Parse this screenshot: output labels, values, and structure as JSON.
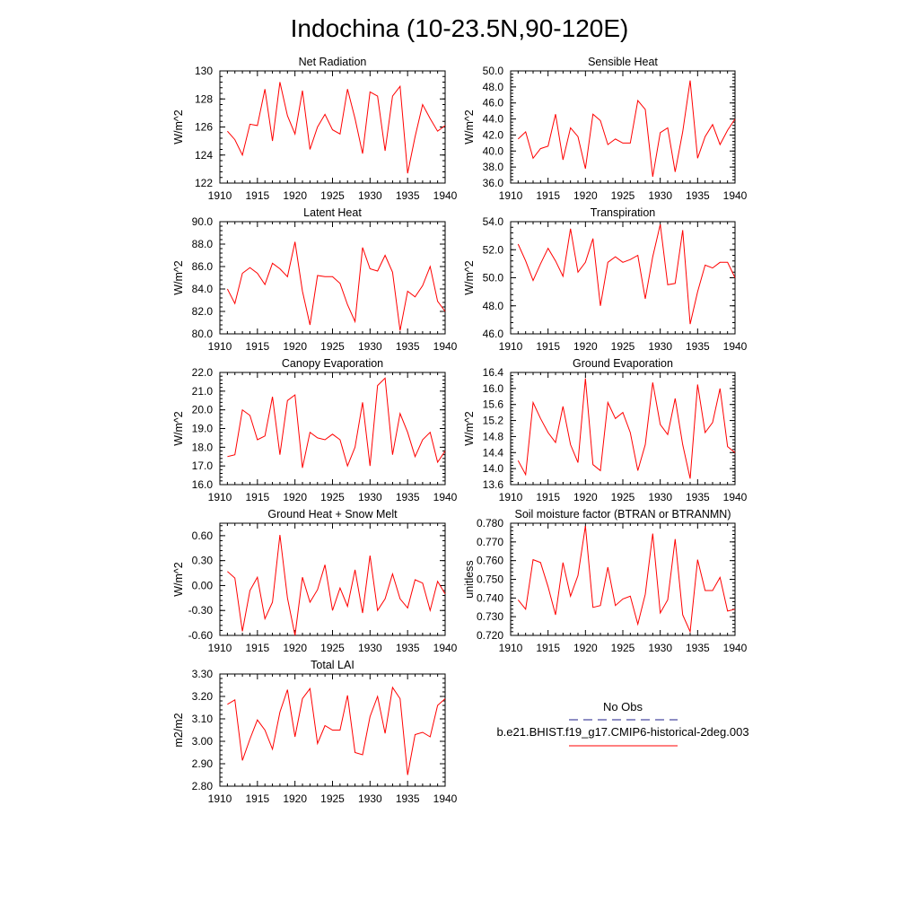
{
  "title": "Indochina (10-23.5N,90-120E)",
  "legend": {
    "obs_label": "No Obs",
    "obs_color": "#4a4aa0",
    "model_label": "b.e21.BHIST.f19_g17.CMIP6-historical-2deg.003",
    "model_color": "#ff0000"
  },
  "chart_data": [
    {
      "type": "line",
      "title": "Net Radiation",
      "ylabel": "W/m^2",
      "xlim": [
        1910,
        1940
      ],
      "ylim": [
        122,
        130
      ],
      "xticks": [
        "1910",
        "1915",
        "1920",
        "1925",
        "1930",
        "1935",
        "1940"
      ],
      "yticks": [
        "122",
        "124",
        "126",
        "128",
        "130"
      ],
      "x": [
        1911,
        1912,
        1913,
        1914,
        1915,
        1916,
        1917,
        1918,
        1919,
        1920,
        1921,
        1922,
        1923,
        1924,
        1925,
        1926,
        1927,
        1928,
        1929,
        1930,
        1931,
        1932,
        1933,
        1934,
        1935,
        1936,
        1937,
        1938,
        1939,
        1940
      ],
      "series": [
        {
          "values": [
            125.7,
            125.1,
            124.0,
            126.2,
            126.1,
            128.7,
            125.0,
            129.2,
            126.8,
            125.5,
            128.6,
            124.4,
            126.0,
            126.9,
            125.8,
            125.5,
            128.7,
            126.6,
            124.1,
            128.5,
            128.2,
            124.3,
            128.2,
            128.9,
            122.7,
            125.3,
            127.6,
            126.6,
            125.7,
            126.1
          ],
          "color": "#ff0000"
        }
      ]
    },
    {
      "type": "line",
      "title": "Sensible Heat",
      "ylabel": "W/m^2",
      "xlim": [
        1910,
        1940
      ],
      "ylim": [
        36.0,
        50.0
      ],
      "xticks": [
        "1910",
        "1915",
        "1920",
        "1925",
        "1930",
        "1935",
        "1940"
      ],
      "yticks": [
        "36.0",
        "38.0",
        "40.0",
        "42.0",
        "44.0",
        "46.0",
        "48.0",
        "50.0"
      ],
      "x": [
        1911,
        1912,
        1913,
        1914,
        1915,
        1916,
        1917,
        1918,
        1919,
        1920,
        1921,
        1922,
        1923,
        1924,
        1925,
        1926,
        1927,
        1928,
        1929,
        1930,
        1931,
        1932,
        1933,
        1934,
        1935,
        1936,
        1937,
        1938,
        1939,
        1940
      ],
      "series": [
        {
          "values": [
            41.5,
            42.4,
            39.1,
            40.3,
            40.6,
            44.6,
            38.9,
            42.9,
            41.8,
            37.8,
            44.6,
            43.8,
            40.8,
            41.5,
            41.0,
            41.0,
            46.3,
            45.2,
            36.8,
            42.3,
            42.9,
            37.4,
            42.4,
            48.8,
            39.1,
            41.8,
            43.3,
            40.8,
            42.6,
            44.0
          ],
          "color": "#ff0000"
        }
      ]
    },
    {
      "type": "line",
      "title": "Latent Heat",
      "ylabel": "W/m^2",
      "xlim": [
        1910,
        1940
      ],
      "ylim": [
        80.0,
        90.0
      ],
      "xticks": [
        "1910",
        "1915",
        "1920",
        "1925",
        "1930",
        "1935",
        "1940"
      ],
      "yticks": [
        "80.0",
        "82.0",
        "84.0",
        "86.0",
        "88.0",
        "90.0"
      ],
      "x": [
        1911,
        1912,
        1913,
        1914,
        1915,
        1916,
        1917,
        1918,
        1919,
        1920,
        1921,
        1922,
        1923,
        1924,
        1925,
        1926,
        1927,
        1928,
        1929,
        1930,
        1931,
        1932,
        1933,
        1934,
        1935,
        1936,
        1937,
        1938,
        1939,
        1940
      ],
      "series": [
        {
          "values": [
            84.0,
            82.7,
            85.4,
            85.9,
            85.4,
            84.4,
            86.3,
            85.8,
            85.1,
            88.2,
            83.8,
            80.8,
            85.2,
            85.1,
            85.1,
            84.5,
            82.6,
            81.1,
            87.7,
            85.8,
            85.6,
            87.0,
            85.5,
            80.3,
            83.8,
            83.3,
            84.3,
            86.0,
            82.9,
            82.0
          ],
          "color": "#ff0000"
        }
      ]
    },
    {
      "type": "line",
      "title": "Transpiration",
      "ylabel": "W/m^2",
      "xlim": [
        1910,
        1940
      ],
      "ylim": [
        46.0,
        54.0
      ],
      "xticks": [
        "1910",
        "1915",
        "1920",
        "1925",
        "1930",
        "1935",
        "1940"
      ],
      "yticks": [
        "46.0",
        "48.0",
        "50.0",
        "52.0",
        "54.0"
      ],
      "x": [
        1911,
        1912,
        1913,
        1914,
        1915,
        1916,
        1917,
        1918,
        1919,
        1920,
        1921,
        1922,
        1923,
        1924,
        1925,
        1926,
        1927,
        1928,
        1929,
        1930,
        1931,
        1932,
        1933,
        1934,
        1935,
        1936,
        1937,
        1938,
        1939,
        1940
      ],
      "series": [
        {
          "values": [
            52.4,
            51.2,
            49.8,
            51.0,
            52.1,
            51.2,
            50.1,
            53.5,
            50.4,
            51.1,
            52.8,
            48.0,
            51.1,
            51.5,
            51.1,
            51.3,
            51.6,
            48.5,
            51.5,
            53.8,
            49.5,
            49.6,
            53.4,
            46.7,
            49.0,
            50.9,
            50.7,
            51.1,
            51.1,
            50.0
          ],
          "color": "#ff0000"
        }
      ]
    },
    {
      "type": "line",
      "title": "Canopy Evaporation",
      "ylabel": "W/m^2",
      "xlim": [
        1910,
        1940
      ],
      "ylim": [
        16.0,
        22.0
      ],
      "xticks": [
        "1910",
        "1915",
        "1920",
        "1925",
        "1930",
        "1935",
        "1940"
      ],
      "yticks": [
        "16.0",
        "17.0",
        "18.0",
        "19.0",
        "20.0",
        "21.0",
        "22.0"
      ],
      "x": [
        1911,
        1912,
        1913,
        1914,
        1915,
        1916,
        1917,
        1918,
        1919,
        1920,
        1921,
        1922,
        1923,
        1924,
        1925,
        1926,
        1927,
        1928,
        1929,
        1930,
        1931,
        1932,
        1933,
        1934,
        1935,
        1936,
        1937,
        1938,
        1939,
        1940
      ],
      "series": [
        {
          "values": [
            17.5,
            17.6,
            20.0,
            19.7,
            18.4,
            18.6,
            20.7,
            17.6,
            20.5,
            20.8,
            16.9,
            18.8,
            18.5,
            18.4,
            18.7,
            18.4,
            17.0,
            18.0,
            20.4,
            17.0,
            21.3,
            21.7,
            17.6,
            19.8,
            18.8,
            17.5,
            18.4,
            18.8,
            17.2,
            17.8
          ],
          "color": "#ff0000"
        }
      ]
    },
    {
      "type": "line",
      "title": "Ground Evaporation",
      "ylabel": "W/m^2",
      "xlim": [
        1910,
        1940
      ],
      "ylim": [
        13.6,
        16.4
      ],
      "xticks": [
        "1910",
        "1915",
        "1920",
        "1925",
        "1930",
        "1935",
        "1940"
      ],
      "yticks": [
        "13.6",
        "14.0",
        "14.4",
        "14.8",
        "15.2",
        "15.6",
        "16.0",
        "16.4"
      ],
      "x": [
        1911,
        1912,
        1913,
        1914,
        1915,
        1916,
        1917,
        1918,
        1919,
        1920,
        1921,
        1922,
        1923,
        1924,
        1925,
        1926,
        1927,
        1928,
        1929,
        1930,
        1931,
        1932,
        1933,
        1934,
        1935,
        1936,
        1937,
        1938,
        1939,
        1940
      ],
      "series": [
        {
          "values": [
            14.2,
            13.85,
            15.65,
            15.25,
            14.9,
            14.65,
            15.55,
            14.6,
            14.15,
            16.25,
            14.1,
            13.95,
            15.65,
            15.25,
            15.4,
            14.9,
            13.95,
            14.6,
            16.15,
            15.1,
            14.85,
            15.75,
            14.6,
            13.75,
            16.1,
            14.9,
            15.15,
            16.0,
            14.55,
            14.4
          ],
          "color": "#ff0000"
        }
      ]
    },
    {
      "type": "line",
      "title": "Ground Heat + Snow Melt",
      "ylabel": "W/m^2",
      "xlim": [
        1910,
        1940
      ],
      "ylim": [
        -0.6,
        0.75
      ],
      "xticks": [
        "1910",
        "1915",
        "1920",
        "1925",
        "1930",
        "1935",
        "1940"
      ],
      "yticks": [
        "-0.60",
        "-0.30",
        "0.00",
        "0.30",
        "0.60"
      ],
      "ytick_values": [
        -0.6,
        -0.3,
        0.0,
        0.3,
        0.6
      ],
      "x": [
        1911,
        1912,
        1913,
        1914,
        1915,
        1916,
        1917,
        1918,
        1919,
        1920,
        1921,
        1922,
        1923,
        1924,
        1925,
        1926,
        1927,
        1928,
        1929,
        1930,
        1931,
        1932,
        1933,
        1934,
        1935,
        1936,
        1937,
        1938,
        1939,
        1940
      ],
      "series": [
        {
          "values": [
            0.17,
            0.09,
            -0.55,
            -0.06,
            0.1,
            -0.4,
            -0.2,
            0.61,
            -0.15,
            -0.6,
            0.1,
            -0.2,
            -0.05,
            0.25,
            -0.3,
            -0.03,
            -0.25,
            0.19,
            -0.33,
            0.36,
            -0.3,
            -0.16,
            0.14,
            -0.16,
            -0.27,
            0.07,
            0.03,
            -0.3,
            0.05,
            -0.1
          ],
          "color": "#ff0000"
        }
      ]
    },
    {
      "type": "line",
      "title": "Soil moisture factor (BTRAN or BTRANMN)",
      "ylabel": "unitless",
      "xlim": [
        1910,
        1940
      ],
      "ylim": [
        0.72,
        0.78
      ],
      "xticks": [
        "1910",
        "1915",
        "1920",
        "1925",
        "1930",
        "1935",
        "1940"
      ],
      "yticks": [
        "0.720",
        "0.730",
        "0.740",
        "0.750",
        "0.760",
        "0.770",
        "0.780"
      ],
      "x": [
        1911,
        1912,
        1913,
        1914,
        1915,
        1916,
        1917,
        1918,
        1919,
        1920,
        1921,
        1922,
        1923,
        1924,
        1925,
        1926,
        1927,
        1928,
        1929,
        1930,
        1931,
        1932,
        1933,
        1934,
        1935,
        1936,
        1937,
        1938,
        1939,
        1940
      ],
      "series": [
        {
          "values": [
            0.739,
            0.734,
            0.7605,
            0.759,
            0.746,
            0.731,
            0.759,
            0.741,
            0.752,
            0.7785,
            0.735,
            0.736,
            0.7565,
            0.736,
            0.7395,
            0.741,
            0.726,
            0.742,
            0.7745,
            0.732,
            0.739,
            0.7715,
            0.731,
            0.722,
            0.7605,
            0.744,
            0.744,
            0.751,
            0.733,
            0.734
          ],
          "color": "#ff0000"
        }
      ]
    },
    {
      "type": "line",
      "title": "Total LAI",
      "ylabel": "m2/m2",
      "xlim": [
        1910,
        1940
      ],
      "ylim": [
        2.8,
        3.3
      ],
      "xticks": [
        "1910",
        "1915",
        "1920",
        "1925",
        "1930",
        "1935",
        "1940"
      ],
      "yticks": [
        "2.80",
        "2.90",
        "3.00",
        "3.10",
        "3.20",
        "3.30"
      ],
      "x": [
        1911,
        1912,
        1913,
        1914,
        1915,
        1916,
        1917,
        1918,
        1919,
        1920,
        1921,
        1922,
        1923,
        1924,
        1925,
        1926,
        1927,
        1928,
        1929,
        1930,
        1931,
        1932,
        1933,
        1934,
        1935,
        1936,
        1937,
        1938,
        1939,
        1940
      ],
      "series": [
        {
          "values": [
            3.165,
            3.185,
            2.915,
            3.01,
            3.095,
            3.05,
            2.965,
            3.13,
            3.23,
            3.02,
            3.19,
            3.235,
            2.99,
            3.07,
            3.05,
            3.05,
            3.205,
            2.95,
            2.94,
            3.11,
            3.2,
            3.035,
            3.24,
            3.19,
            2.85,
            3.03,
            3.04,
            3.02,
            3.16,
            3.19
          ],
          "color": "#ff0000"
        }
      ]
    }
  ]
}
